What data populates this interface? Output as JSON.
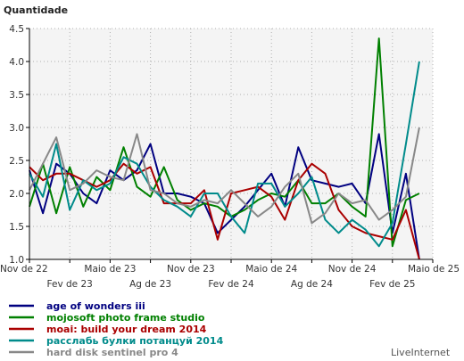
{
  "chart_data": {
    "type": "line",
    "ylabel": "Quantidade",
    "ylim": [
      1.0,
      4.5
    ],
    "yticks": [
      "1.0",
      "1.5",
      "2.0",
      "2.5",
      "3.0",
      "3.5",
      "4.0",
      "4.5"
    ],
    "grid": true,
    "xtick_labels_row1": [
      "Nov de 22",
      "Maio de 23",
      "Nov de 23",
      "Maio de 24",
      "Nov de 24",
      "Maio de 25"
    ],
    "xtick_labels_row2": [
      "Fev de 23",
      "Ag de 23",
      "Fev de 24",
      "Ag de 24",
      "Fev de 25"
    ],
    "x": [
      "2022-11",
      "2022-12",
      "2023-01",
      "2023-02",
      "2023-03",
      "2023-04",
      "2023-05",
      "2023-06",
      "2023-07",
      "2023-08",
      "2023-09",
      "2023-10",
      "2023-11",
      "2023-12",
      "2024-01",
      "2024-02",
      "2024-03",
      "2024-04",
      "2024-05",
      "2024-06",
      "2024-07",
      "2024-08",
      "2024-09",
      "2024-10",
      "2024-11",
      "2024-12",
      "2025-01",
      "2025-02",
      "2025-03",
      "2025-04",
      "2025-05"
    ],
    "legend_position": "bottom-left",
    "series": [
      {
        "name": "age of wonders iii",
        "color": "#000080",
        "values": [
          2.35,
          1.7,
          2.45,
          2.3,
          2.0,
          1.85,
          2.35,
          2.2,
          2.35,
          2.75,
          2.0,
          2.0,
          1.95,
          1.85,
          1.4,
          1.6,
          1.8,
          2.05,
          2.3,
          1.8,
          2.7,
          2.2,
          2.15,
          2.1,
          2.15,
          1.85,
          2.9,
          1.4,
          2.3,
          1.0,
          null
        ]
      },
      {
        "name": "mojosoft photo frame studio",
        "color": "#008000",
        "values": [
          1.8,
          2.45,
          1.7,
          2.4,
          1.8,
          2.25,
          2.05,
          2.7,
          2.1,
          1.95,
          2.4,
          1.9,
          1.75,
          1.85,
          1.8,
          1.65,
          1.75,
          1.9,
          2.0,
          1.95,
          2.2,
          1.85,
          1.85,
          2.0,
          1.8,
          1.65,
          4.35,
          1.2,
          1.9,
          2.0,
          null
        ]
      },
      {
        "name": "moai: build your dream 2014",
        "color": "#aa0000",
        "values": [
          2.4,
          2.2,
          2.3,
          2.3,
          2.2,
          2.1,
          2.2,
          2.45,
          2.3,
          2.4,
          1.85,
          1.85,
          1.85,
          2.05,
          1.3,
          2.0,
          2.05,
          2.1,
          1.95,
          1.6,
          2.2,
          2.45,
          2.3,
          1.75,
          1.5,
          1.4,
          1.35,
          1.3,
          1.75,
          1.0,
          null
        ]
      },
      {
        "name": "расслабь булки потанцуй 2014",
        "color": "#008b8b",
        "values": [
          2.3,
          1.95,
          2.75,
          1.75,
          2.2,
          2.05,
          2.15,
          2.55,
          2.45,
          2.1,
          1.9,
          1.8,
          1.65,
          2.0,
          2.0,
          1.65,
          1.4,
          2.15,
          2.15,
          1.8,
          2.0,
          2.25,
          1.6,
          1.4,
          1.6,
          1.45,
          1.2,
          1.55,
          2.75,
          4.0,
          null
        ]
      },
      {
        "name": "hard disk sentinel pro 4",
        "color": "#888888",
        "values": [
          2.05,
          2.45,
          2.85,
          2.05,
          2.15,
          2.35,
          2.25,
          2.2,
          2.9,
          2.05,
          2.0,
          1.85,
          1.8,
          1.9,
          1.85,
          2.05,
          1.85,
          1.65,
          1.8,
          2.1,
          2.3,
          1.55,
          1.7,
          2.0,
          1.85,
          1.9,
          1.6,
          1.75,
          1.95,
          3.0,
          null
        ]
      }
    ]
  },
  "branding": "LiveInternet"
}
